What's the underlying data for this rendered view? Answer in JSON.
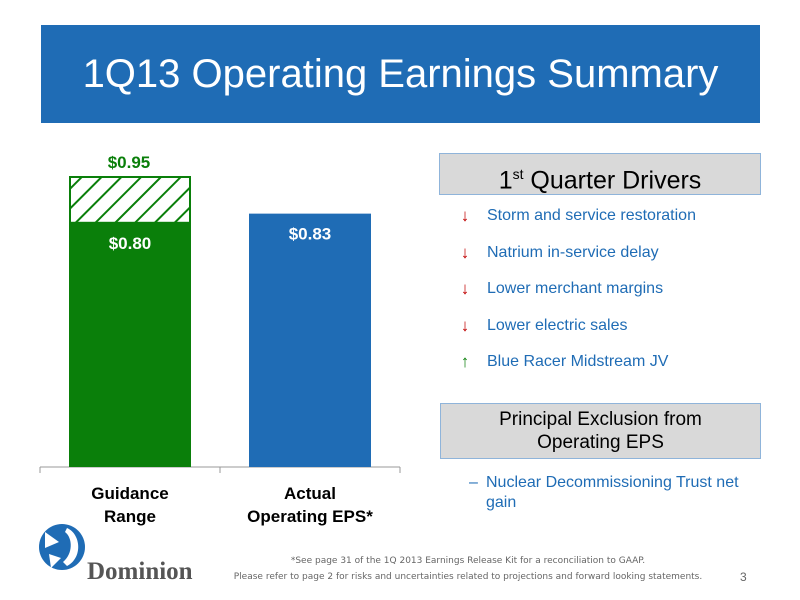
{
  "title": "1Q13 Operating Earnings Summary",
  "colors": {
    "banner": "#1f6cb5",
    "guidance": "#0a7f0a",
    "actual": "#1f6cb5",
    "driver_text": "#1f6cb5",
    "down_arrow": "#c00000",
    "up_arrow": "#0a7f0a"
  },
  "chart_data": {
    "type": "bar",
    "categories": [
      "Guidance Range",
      "Actual Operating EPS*"
    ],
    "series": [
      {
        "values": [
          0.8,
          0.83
        ]
      },
      {
        "values": [
          0.15,
          null
        ],
        "pattern": "hatched"
      }
    ],
    "guidance_range": [
      0.8,
      0.95
    ],
    "data_labels": {
      "guidance_high": "$0.95",
      "guidance_low": "$0.80",
      "actual": "$0.83"
    },
    "ylim": [
      0,
      0.95
    ],
    "grid": false
  },
  "x_labels": {
    "guidance_line1": "Guidance",
    "guidance_line2": "Range",
    "actual_line1": "Actual",
    "actual_line2": "Operating EPS*"
  },
  "drivers": {
    "heading": "1",
    "heading_sup": "st",
    "heading_rest": " Quarter Drivers",
    "items": [
      {
        "icon": "down-arrow-icon",
        "label": "Storm and service restoration"
      },
      {
        "icon": "down-arrow-icon",
        "label": "Natrium in-service delay"
      },
      {
        "icon": "down-arrow-icon",
        "label": "Lower merchant margins"
      },
      {
        "icon": "down-arrow-icon",
        "label": "Lower electric sales"
      },
      {
        "icon": "up-arrow-icon",
        "label": "Blue Racer Midstream JV"
      }
    ]
  },
  "exclusion": {
    "heading_line1": "Principal Exclusion from",
    "heading_line2": "Operating EPS",
    "dash": "–",
    "item": "Nuclear Decommissioning Trust net gain"
  },
  "logo_text": "Dominion",
  "footnote_1": "*See page 31 of the 1Q 2013 Earnings Release Kit for a reconciliation to GAAP.",
  "footnote_2": "Please refer to page 2 for risks and uncertainties related to projections and forward looking statements.",
  "page_number": "3"
}
